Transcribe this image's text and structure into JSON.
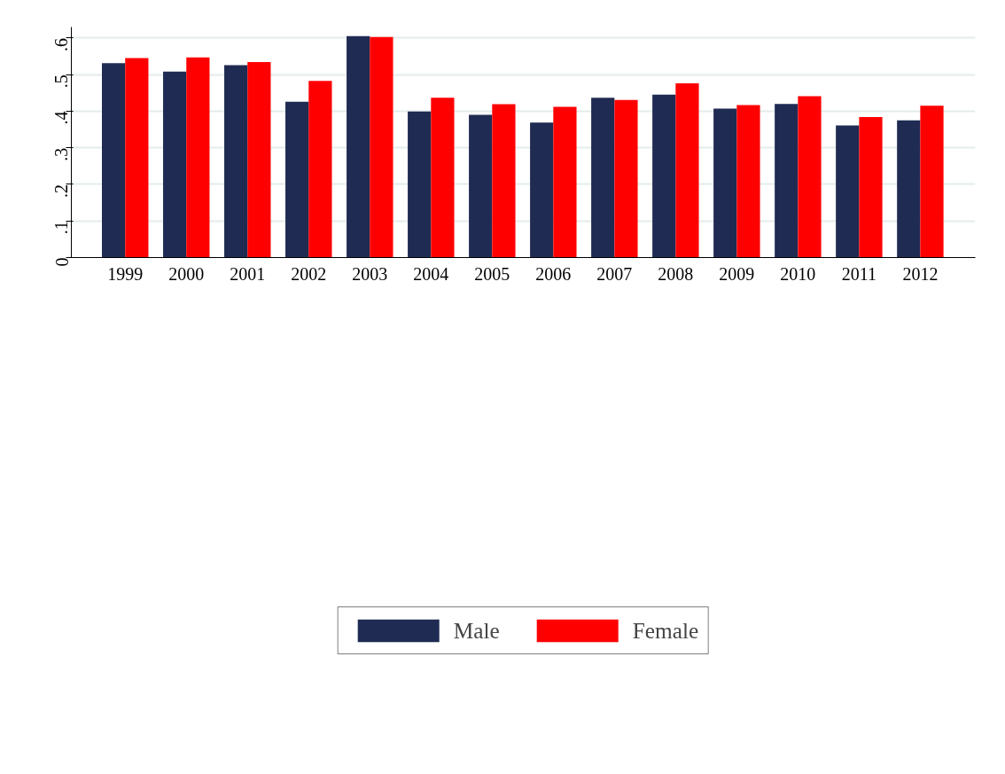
{
  "chart_data": {
    "type": "bar",
    "categories": [
      "1999",
      "2000",
      "2001",
      "2002",
      "2003",
      "2004",
      "2005",
      "2006",
      "2007",
      "2008",
      "2009",
      "2010",
      "2011",
      "2012"
    ],
    "series": [
      {
        "name": "Male",
        "color": "#1f2b52",
        "values": [
          0.531,
          0.508,
          0.526,
          0.426,
          0.605,
          0.399,
          0.39,
          0.369,
          0.437,
          0.445,
          0.407,
          0.42,
          0.361,
          0.375
        ]
      },
      {
        "name": "Female",
        "color": "#ff0000",
        "values": [
          0.545,
          0.547,
          0.534,
          0.483,
          0.603,
          0.437,
          0.419,
          0.412,
          0.431,
          0.476,
          0.417,
          0.441,
          0.384,
          0.415
        ]
      }
    ],
    "ylim": [
      0,
      0.63
    ],
    "yticks": [
      0,
      {
        "value": 0.1,
        "label": ".1"
      },
      {
        "value": 0.2,
        "label": ".2"
      },
      {
        "value": 0.3,
        "label": ".3"
      },
      {
        "value": 0.4,
        "label": ".4"
      },
      {
        "value": 0.5,
        "label": ".5"
      },
      {
        "value": 0.6,
        "label": ".6"
      }
    ],
    "grid": "y",
    "legend": "bottom"
  }
}
